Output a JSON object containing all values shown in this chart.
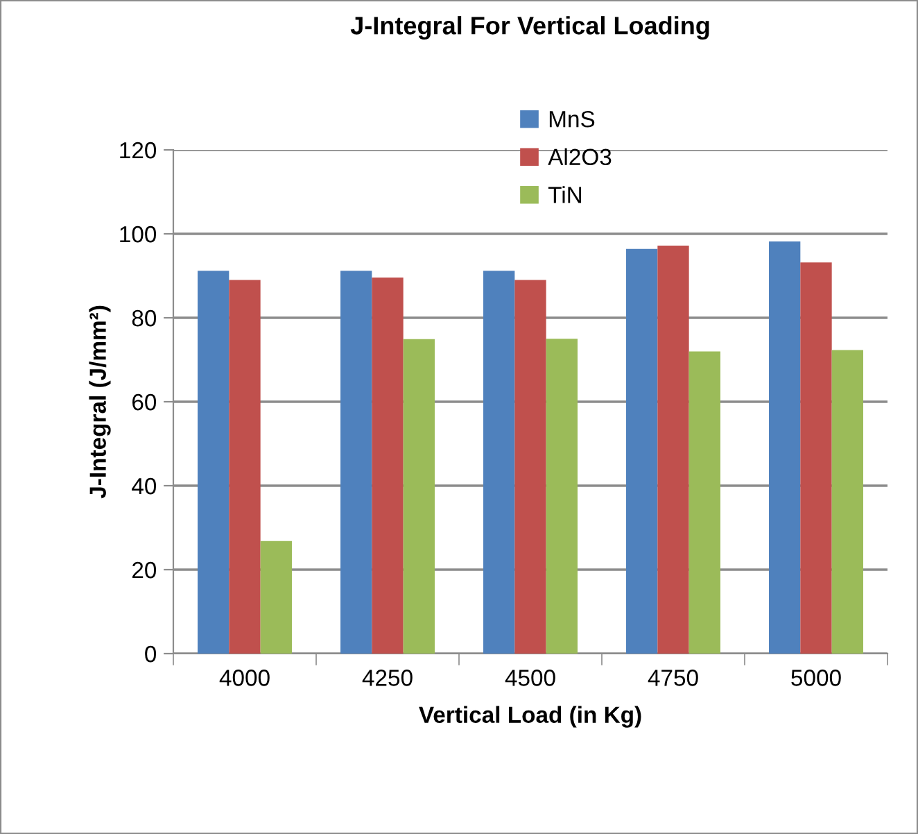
{
  "chart_data": {
    "type": "bar",
    "title": "J-Integral For Vertical Loading",
    "xlabel": "Vertical Load (in Kg)",
    "ylabel": "J-Integral (J/mm²)",
    "categories": [
      "4000",
      "4250",
      "4500",
      "4750",
      "5000"
    ],
    "series": [
      {
        "name": "MnS",
        "color": "#4f81bd",
        "values": [
          91.2,
          91.2,
          91.2,
          96.4,
          98.2
        ]
      },
      {
        "name": "Al2O3",
        "color": "#c0504d",
        "values": [
          89.0,
          89.6,
          89.0,
          97.2,
          93.2
        ]
      },
      {
        "name": "TiN",
        "color": "#9bbb59",
        "values": [
          26.8,
          74.9,
          75.0,
          72.0,
          72.3
        ]
      }
    ],
    "ylim": [
      0,
      120
    ],
    "yticks": [
      0,
      20,
      40,
      60,
      80,
      100,
      120
    ],
    "grid": "y",
    "legend": "top"
  }
}
